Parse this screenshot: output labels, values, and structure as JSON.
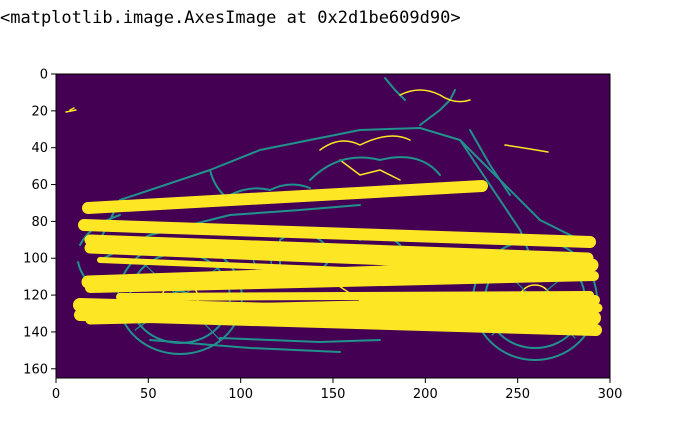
{
  "output": {
    "repr_text": "<matplotlib.image.AxesImage at 0x2d1be609d90>"
  },
  "chart_data": {
    "type": "heatmap",
    "title": "",
    "xlabel": "",
    "ylabel": "",
    "xlim": [
      0,
      300
    ],
    "ylim": [
      165,
      0
    ],
    "x_ticks": [
      0,
      50,
      100,
      150,
      200,
      250,
      300
    ],
    "y_ticks": [
      0,
      20,
      40,
      60,
      80,
      100,
      120,
      140,
      160
    ],
    "grid": false,
    "colormap": "viridis",
    "colors": {
      "background": "#440154",
      "edge": "#21918c",
      "highlight": "#fde725"
    },
    "image_content": "canny edge map of a motorcycle overlaid with thick yellow diagonal strokes"
  }
}
